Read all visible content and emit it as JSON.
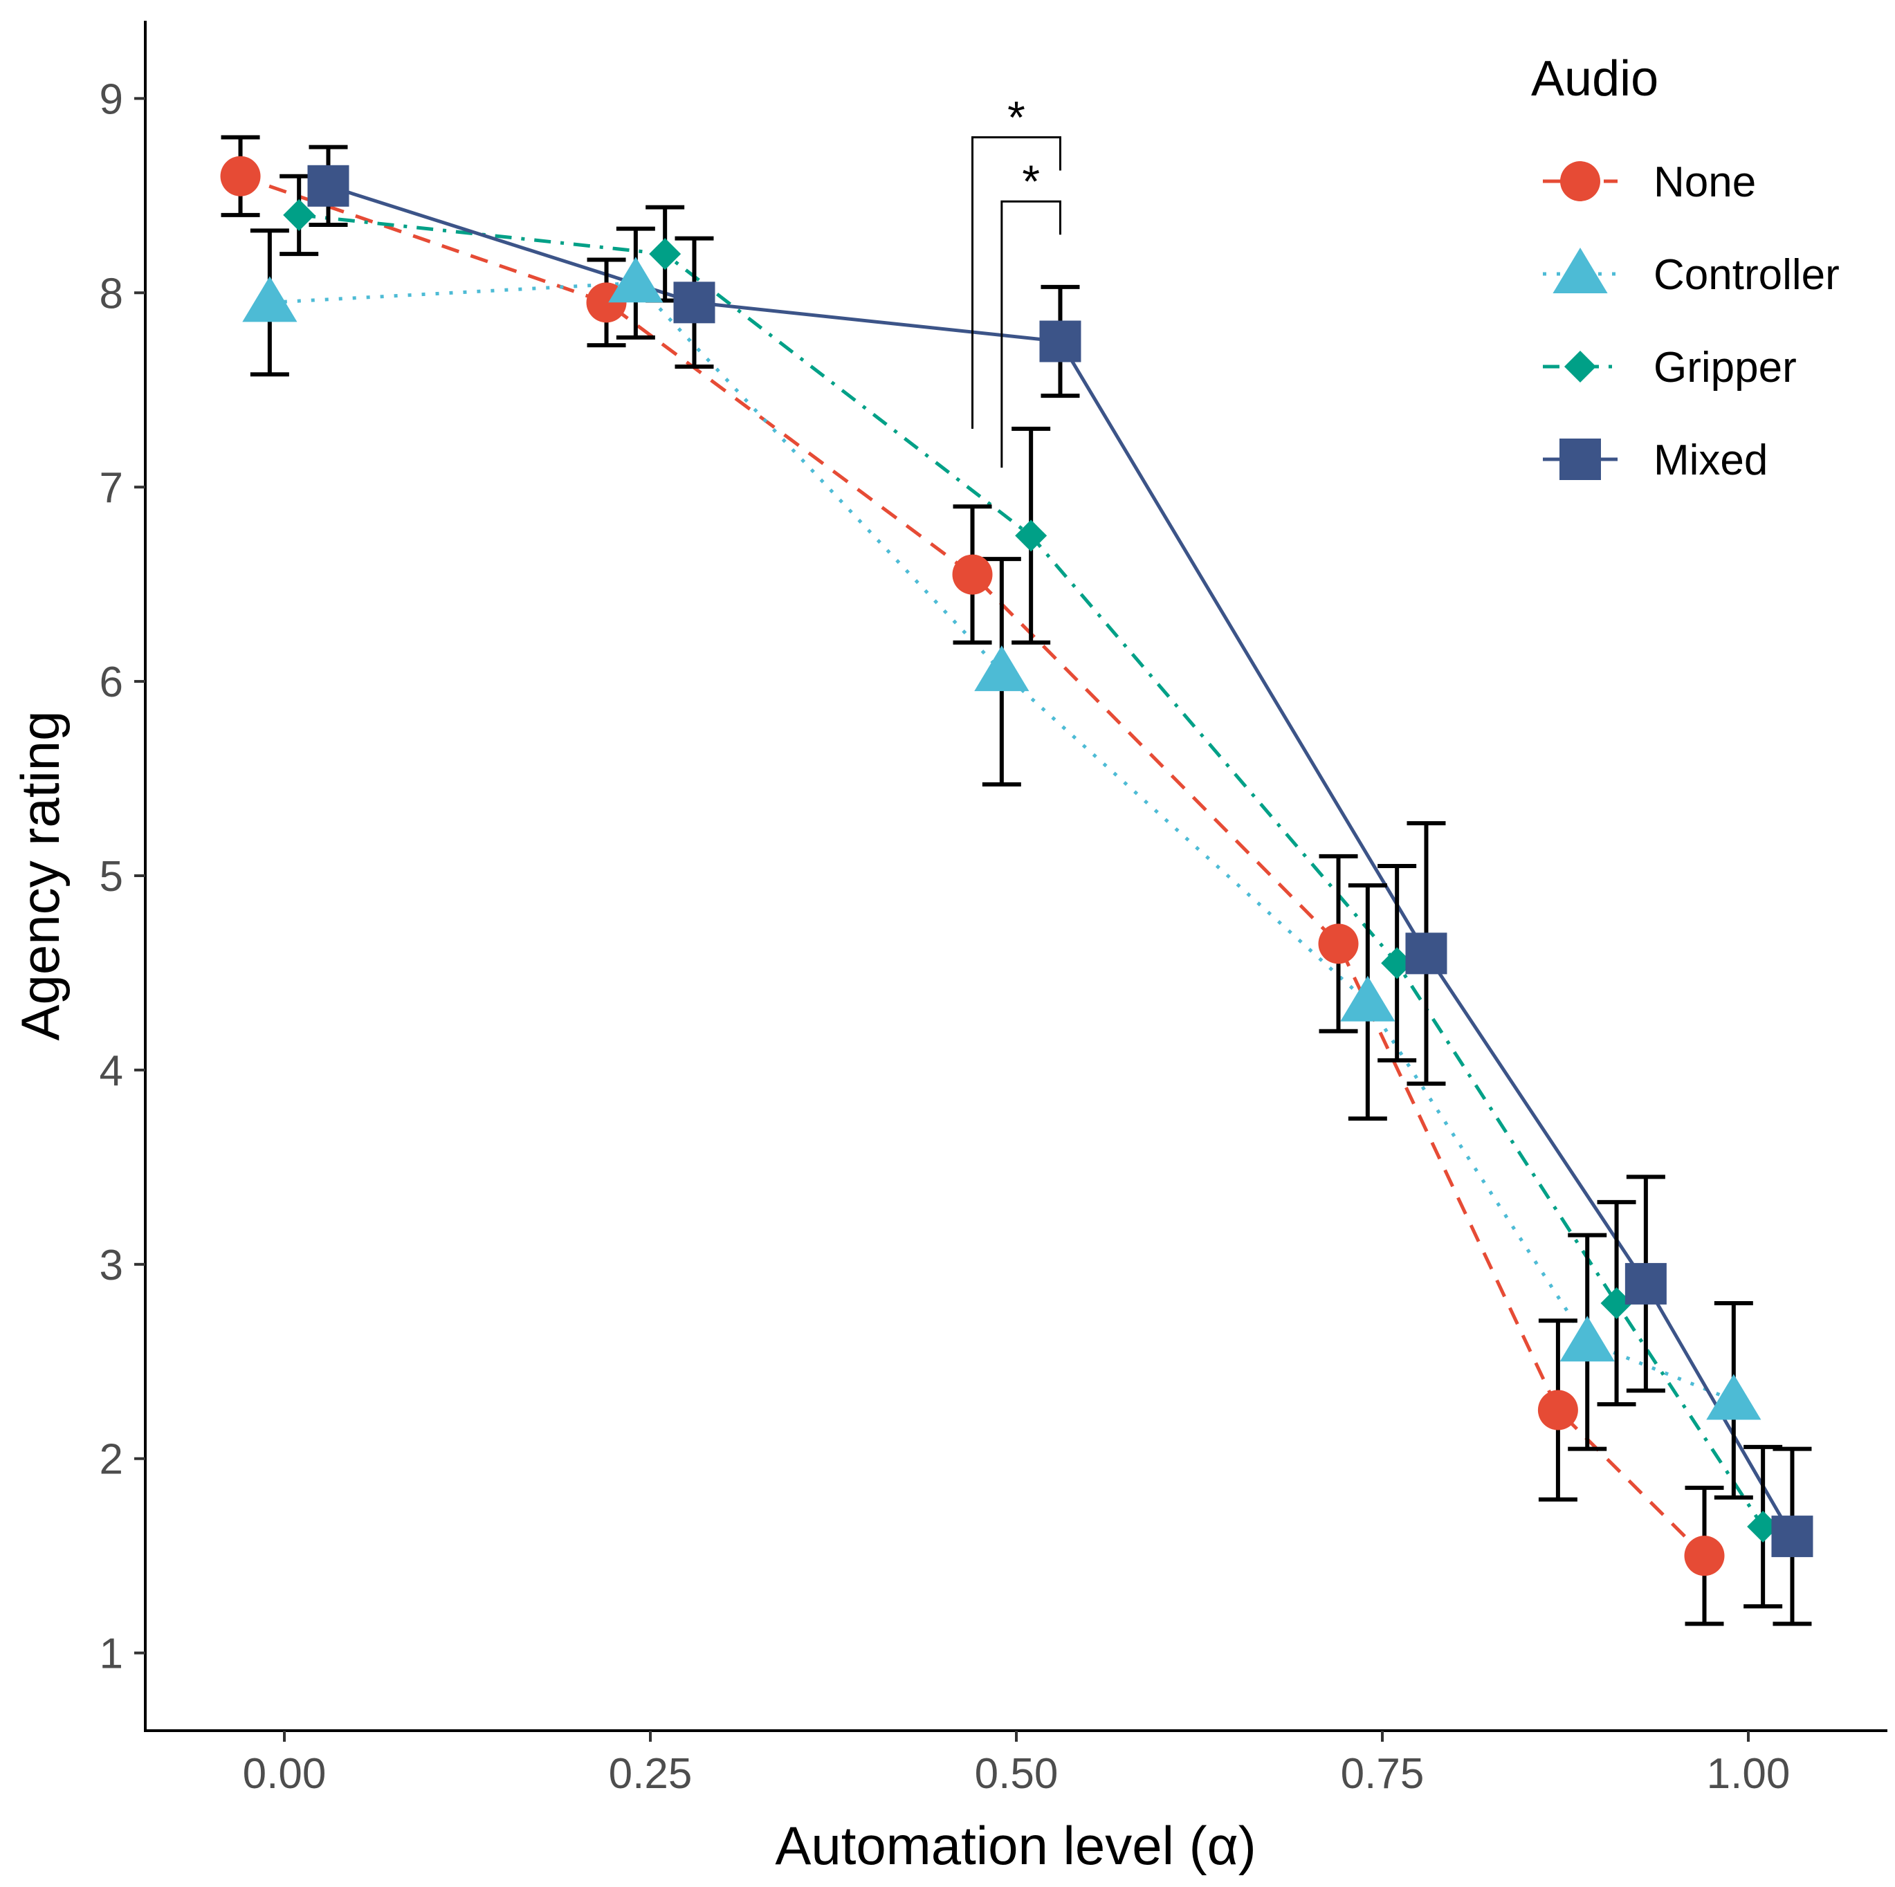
{
  "chart_data": {
    "type": "line",
    "title": "",
    "xlabel": "Automation level (α)",
    "ylabel": "Agency rating",
    "xlim": [
      -0.095,
      1.095
    ],
    "ylim": [
      0.6,
      9.4
    ],
    "grid": false,
    "xticks": [
      0,
      0.25,
      0.5,
      0.75,
      1
    ],
    "xtick_labels": [
      "0.00",
      "0.25",
      "0.50",
      "0.75",
      "1.00"
    ],
    "yticks": [
      1,
      2,
      3,
      4,
      5,
      6,
      7,
      8,
      9
    ],
    "ytick_labels": [
      "1",
      "2",
      "3",
      "4",
      "5",
      "6",
      "7",
      "8",
      "9"
    ],
    "legend": {
      "title": "Audio",
      "position": "top-right"
    },
    "series": [
      {
        "name": "None",
        "color": "#E64B35",
        "marker": "circle",
        "line": "dashed",
        "x": [
          -0.03,
          0.22,
          0.47,
          0.72,
          0.87,
          0.97
        ],
        "y": [
          8.6,
          7.95,
          6.55,
          4.65,
          2.25,
          1.5
        ],
        "err_low": [
          8.4,
          7.73,
          6.2,
          4.2,
          1.79,
          1.15
        ],
        "err_high": [
          8.8,
          8.17,
          6.9,
          5.1,
          2.71,
          1.85
        ]
      },
      {
        "name": "Controller",
        "color": "#4DBBD5",
        "marker": "triangle",
        "line": "dotted",
        "x": [
          -0.01,
          0.24,
          0.49,
          0.74,
          0.89,
          0.99
        ],
        "y": [
          7.95,
          8.05,
          6.05,
          4.35,
          2.6,
          2.3
        ],
        "err_low": [
          7.58,
          7.77,
          5.47,
          3.75,
          2.05,
          1.8
        ],
        "err_high": [
          8.32,
          8.33,
          6.63,
          4.95,
          3.15,
          2.8
        ]
      },
      {
        "name": "Gripper",
        "color": "#00A087",
        "marker": "diamond",
        "line": "dotdash",
        "x": [
          0.01,
          0.26,
          0.51,
          0.76,
          0.91,
          1.01
        ],
        "y": [
          8.4,
          8.2,
          6.75,
          4.55,
          2.8,
          1.65
        ],
        "err_low": [
          8.2,
          7.96,
          6.2,
          4.05,
          2.28,
          1.24
        ],
        "err_high": [
          8.6,
          8.44,
          7.3,
          5.05,
          3.32,
          2.06
        ]
      },
      {
        "name": "Mixed",
        "color": "#3C5488",
        "marker": "square",
        "line": "solid",
        "x": [
          0.03,
          0.28,
          0.53,
          0.78,
          0.93,
          1.03
        ],
        "y": [
          8.55,
          7.95,
          7.75,
          4.6,
          2.9,
          1.6
        ],
        "err_low": [
          8.35,
          7.62,
          7.47,
          3.93,
          2.35,
          1.15
        ],
        "err_high": [
          8.75,
          8.28,
          8.03,
          5.27,
          3.45,
          2.05
        ]
      }
    ],
    "annotations": [
      {
        "label": "*",
        "x_from": 0.47,
        "x_to": 0.53,
        "y_low": 7.3,
        "y_high": 8.8
      },
      {
        "label": "*",
        "x_from": 0.49,
        "x_to": 0.53,
        "y_low": 7.1,
        "y_high": 8.47
      }
    ]
  }
}
